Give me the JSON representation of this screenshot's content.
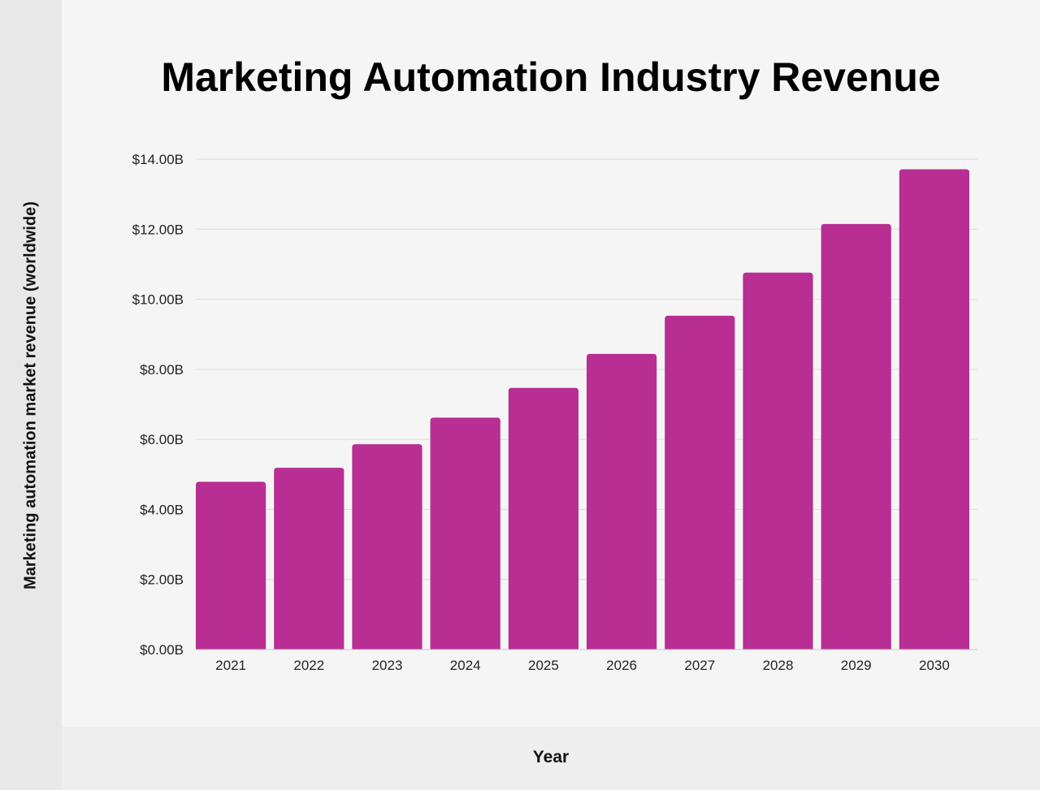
{
  "chart_data": {
    "type": "bar",
    "title": "Marketing Automation Industry Revenue",
    "xlabel": "Year",
    "ylabel": "Marketing automation market revenue (worldwide)",
    "categories": [
      "2021",
      "2022",
      "2023",
      "2024",
      "2025",
      "2026",
      "2027",
      "2028",
      "2029",
      "2030"
    ],
    "values": [
      4.79,
      5.19,
      5.86,
      6.62,
      7.47,
      8.44,
      9.53,
      10.76,
      12.15,
      13.71
    ],
    "unit": "billion USD",
    "ylim": [
      0,
      14
    ],
    "yticks": [
      0,
      2,
      4,
      6,
      8,
      10,
      12,
      14
    ],
    "ytick_labels": [
      "$0.00B",
      "$2.00B",
      "$4.00B",
      "$6.00B",
      "$8.00B",
      "$10.00B",
      "$12.00B",
      "$14.00B"
    ],
    "grid": true,
    "legend": "none",
    "bar_color": "#b82e93"
  }
}
